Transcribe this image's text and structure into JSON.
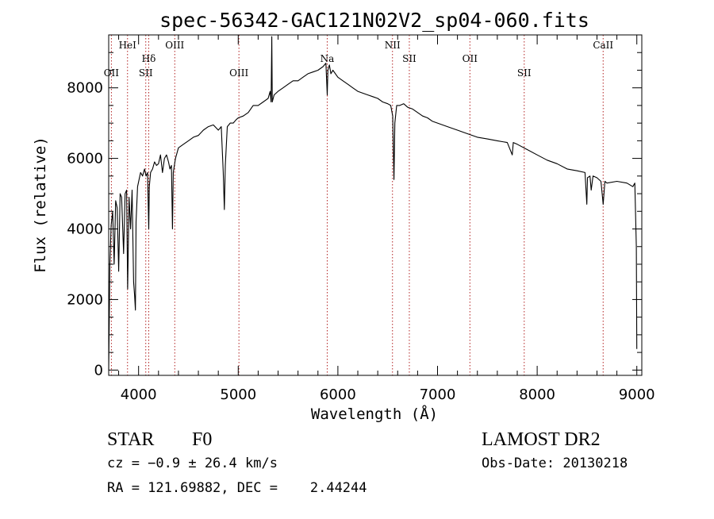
{
  "chart_data": {
    "type": "line",
    "title": "spec-56342-GAC121N02V2_sp04-060.fits",
    "xlabel": "Wavelength (Å)",
    "ylabel": "Flux (relative)",
    "xlim": [
      3700,
      9050
    ],
    "ylim": [
      -150,
      9500
    ],
    "x_ticks": [
      4000,
      5000,
      6000,
      7000,
      8000,
      9000
    ],
    "y_ticks": [
      0,
      2000,
      4000,
      6000,
      8000
    ],
    "grid": false,
    "series": [
      {
        "color": "#000000",
        "points": [
          [
            3700,
            0
          ],
          [
            3712,
            3000
          ],
          [
            3725,
            4100
          ],
          [
            3740,
            4500
          ],
          [
            3755,
            3000
          ],
          [
            3770,
            4800
          ],
          [
            3785,
            4600
          ],
          [
            3800,
            2800
          ],
          [
            3815,
            5000
          ],
          [
            3830,
            4900
          ],
          [
            3850,
            3300
          ],
          [
            3865,
            5000
          ],
          [
            3880,
            5100
          ],
          [
            3890,
            2300
          ],
          [
            3905,
            4900
          ],
          [
            3920,
            4000
          ],
          [
            3935,
            5100
          ],
          [
            3950,
            2500
          ],
          [
            3960,
            2100
          ],
          [
            3968,
            1700
          ],
          [
            3975,
            4200
          ],
          [
            3990,
            5200
          ],
          [
            4005,
            5400
          ],
          [
            4020,
            5600
          ],
          [
            4040,
            5500
          ],
          [
            4060,
            5700
          ],
          [
            4075,
            5500
          ],
          [
            4090,
            5600
          ],
          [
            4102,
            4000
          ],
          [
            4108,
            5200
          ],
          [
            4120,
            5600
          ],
          [
            4140,
            5700
          ],
          [
            4160,
            5900
          ],
          [
            4180,
            5800
          ],
          [
            4200,
            5850
          ],
          [
            4220,
            6100
          ],
          [
            4240,
            5600
          ],
          [
            4260,
            6000
          ],
          [
            4280,
            6100
          ],
          [
            4300,
            5900
          ],
          [
            4315,
            5700
          ],
          [
            4330,
            5800
          ],
          [
            4340,
            4000
          ],
          [
            4348,
            5600
          ],
          [
            4370,
            6000
          ],
          [
            4400,
            6300
          ],
          [
            4450,
            6400
          ],
          [
            4500,
            6500
          ],
          [
            4550,
            6600
          ],
          [
            4600,
            6650
          ],
          [
            4650,
            6800
          ],
          [
            4700,
            6900
          ],
          [
            4750,
            6950
          ],
          [
            4800,
            6800
          ],
          [
            4830,
            6900
          ],
          [
            4850,
            5600
          ],
          [
            4861,
            4550
          ],
          [
            4870,
            5800
          ],
          [
            4890,
            6900
          ],
          [
            4920,
            7000
          ],
          [
            4950,
            7000
          ],
          [
            4980,
            7100
          ],
          [
            5000,
            7150
          ],
          [
            5050,
            7200
          ],
          [
            5100,
            7300
          ],
          [
            5150,
            7500
          ],
          [
            5200,
            7500
          ],
          [
            5250,
            7600
          ],
          [
            5300,
            7700
          ],
          [
            5320,
            7900
          ],
          [
            5330,
            7600
          ],
          [
            5337,
            9450
          ],
          [
            5342,
            7600
          ],
          [
            5360,
            7800
          ],
          [
            5400,
            7900
          ],
          [
            5450,
            8000
          ],
          [
            5500,
            8100
          ],
          [
            5550,
            8200
          ],
          [
            5600,
            8200
          ],
          [
            5650,
            8300
          ],
          [
            5700,
            8400
          ],
          [
            5750,
            8450
          ],
          [
            5800,
            8500
          ],
          [
            5850,
            8600
          ],
          [
            5880,
            8700
          ],
          [
            5893,
            7800
          ],
          [
            5900,
            8500
          ],
          [
            5915,
            8650
          ],
          [
            5930,
            8400
          ],
          [
            5950,
            8500
          ],
          [
            6000,
            8300
          ],
          [
            6050,
            8200
          ],
          [
            6100,
            8100
          ],
          [
            6150,
            8000
          ],
          [
            6200,
            7900
          ],
          [
            6250,
            7850
          ],
          [
            6300,
            7800
          ],
          [
            6350,
            7750
          ],
          [
            6400,
            7700
          ],
          [
            6450,
            7600
          ],
          [
            6500,
            7550
          ],
          [
            6530,
            7500
          ],
          [
            6550,
            7200
          ],
          [
            6563,
            5400
          ],
          [
            6572,
            7000
          ],
          [
            6590,
            7500
          ],
          [
            6620,
            7500
          ],
          [
            6660,
            7550
          ],
          [
            6700,
            7450
          ],
          [
            6750,
            7400
          ],
          [
            6800,
            7300
          ],
          [
            6850,
            7200
          ],
          [
            6900,
            7150
          ],
          [
            6950,
            7050
          ],
          [
            7000,
            7000
          ],
          [
            7100,
            6900
          ],
          [
            7200,
            6800
          ],
          [
            7300,
            6700
          ],
          [
            7400,
            6600
          ],
          [
            7500,
            6550
          ],
          [
            7600,
            6500
          ],
          [
            7700,
            6450
          ],
          [
            7750,
            6100
          ],
          [
            7760,
            6450
          ],
          [
            7800,
            6400
          ],
          [
            7900,
            6250
          ],
          [
            8000,
            6100
          ],
          [
            8100,
            5950
          ],
          [
            8200,
            5850
          ],
          [
            8300,
            5700
          ],
          [
            8400,
            5650
          ],
          [
            8480,
            5600
          ],
          [
            8498,
            4700
          ],
          [
            8505,
            5450
          ],
          [
            8530,
            5500
          ],
          [
            8542,
            5100
          ],
          [
            8560,
            5500
          ],
          [
            8600,
            5450
          ],
          [
            8640,
            5350
          ],
          [
            8662,
            4700
          ],
          [
            8680,
            5350
          ],
          [
            8700,
            5300
          ],
          [
            8800,
            5350
          ],
          [
            8900,
            5300
          ],
          [
            8960,
            5200
          ],
          [
            8980,
            5300
          ],
          [
            8995,
            3500
          ],
          [
            9000,
            600
          ]
        ]
      }
    ],
    "annotations": [
      {
        "label": "OII",
        "x": 3727,
        "level": 4
      },
      {
        "label": "HeI",
        "x": 3889,
        "level": 1
      },
      {
        "label": "Hδ",
        "x": 4102,
        "level": 2
      },
      {
        "label": "SII",
        "x": 4072,
        "level": 3
      },
      {
        "label": "OIII",
        "x": 4363,
        "level": 1
      },
      {
        "label": "OIII",
        "x": 5007,
        "level": 3
      },
      {
        "label": "Na",
        "x": 5893,
        "level": 2
      },
      {
        "label": "NII",
        "x": 6548,
        "level": 1
      },
      {
        "label": "SII",
        "x": 6717,
        "level": 2
      },
      {
        "label": "OII",
        "x": 7325,
        "level": 2
      },
      {
        "label": "SII",
        "x": 7870,
        "level": 3
      },
      {
        "label": "CaII",
        "x": 8662,
        "level": 1
      }
    ]
  },
  "info": {
    "object_class": "STAR",
    "subclass": "F0",
    "survey": "LAMOST DR2",
    "redshift": "cz = −0.9 ± 26.4 km/s",
    "obs_date": "Obs-Date: 20130218",
    "coords": "RA = 121.69882, DEC =    2.44244"
  },
  "colors": {
    "spectrum": "#000000",
    "line_marker": "#b22222"
  }
}
